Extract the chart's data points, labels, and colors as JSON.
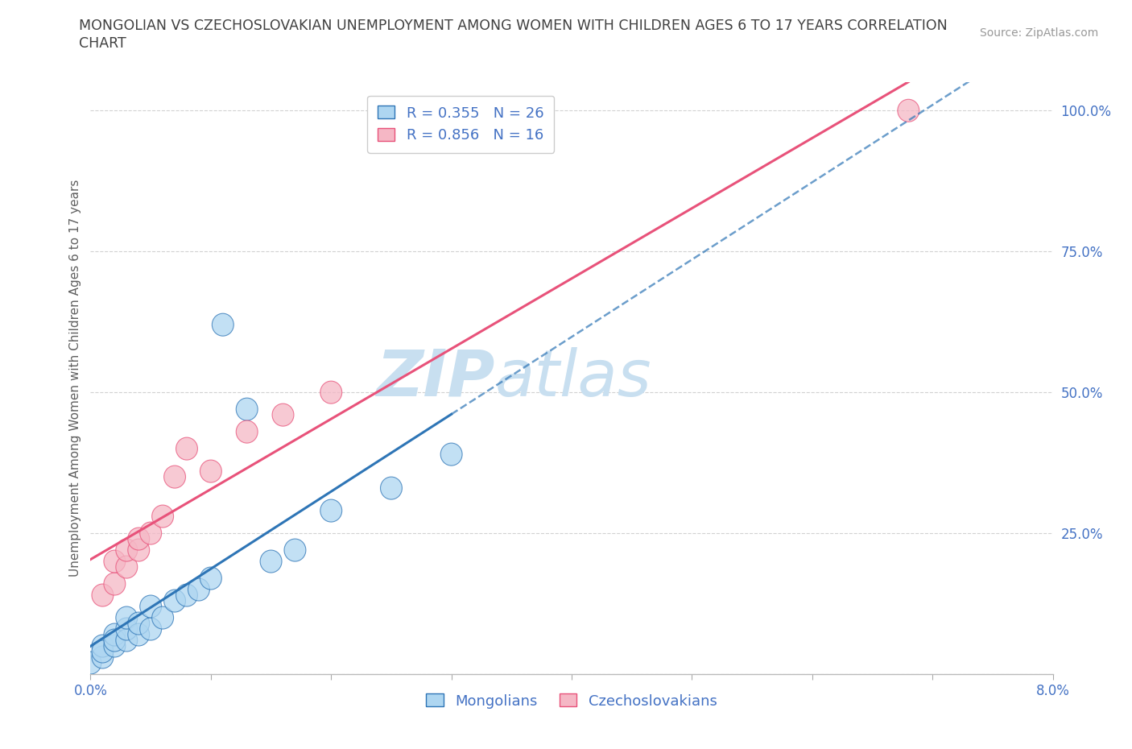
{
  "title_line1": "MONGOLIAN VS CZECHOSLOVAKIAN UNEMPLOYMENT AMONG WOMEN WITH CHILDREN AGES 6 TO 17 YEARS CORRELATION",
  "title_line2": "CHART",
  "source_text": "Source: ZipAtlas.com",
  "ylabel": "Unemployment Among Women with Children Ages 6 to 17 years",
  "xlim": [
    0.0,
    0.08
  ],
  "ylim": [
    0.0,
    1.05
  ],
  "xticks": [
    0.0,
    0.01,
    0.02,
    0.03,
    0.04,
    0.05,
    0.06,
    0.07,
    0.08
  ],
  "xticklabels": [
    "0.0%",
    "",
    "",
    "",
    "",
    "",
    "",
    "",
    "8.0%"
  ],
  "yticks": [
    0.0,
    0.25,
    0.5,
    0.75,
    1.0
  ],
  "yticklabels": [
    "",
    "25.0%",
    "50.0%",
    "75.0%",
    "100.0%"
  ],
  "mongolian_x": [
    0.0,
    0.001,
    0.001,
    0.001,
    0.002,
    0.002,
    0.002,
    0.003,
    0.003,
    0.003,
    0.004,
    0.004,
    0.005,
    0.005,
    0.006,
    0.007,
    0.008,
    0.009,
    0.01,
    0.011,
    0.013,
    0.015,
    0.017,
    0.02,
    0.025,
    0.03
  ],
  "mongolian_y": [
    0.02,
    0.03,
    0.05,
    0.04,
    0.05,
    0.07,
    0.06,
    0.06,
    0.08,
    0.1,
    0.07,
    0.09,
    0.08,
    0.12,
    0.1,
    0.13,
    0.14,
    0.15,
    0.17,
    0.62,
    0.47,
    0.2,
    0.22,
    0.29,
    0.33,
    0.39
  ],
  "czechoslovakian_x": [
    0.001,
    0.002,
    0.002,
    0.003,
    0.003,
    0.004,
    0.004,
    0.005,
    0.006,
    0.007,
    0.008,
    0.01,
    0.013,
    0.016,
    0.02,
    0.068
  ],
  "czechoslovakian_y": [
    0.14,
    0.16,
    0.2,
    0.19,
    0.22,
    0.22,
    0.24,
    0.25,
    0.28,
    0.35,
    0.4,
    0.36,
    0.43,
    0.46,
    0.5,
    1.0
  ],
  "mongolian_R": 0.355,
  "mongolian_N": 26,
  "czechoslovakian_R": 0.856,
  "czechoslovakian_N": 16,
  "mongolian_color": "#aed6f1",
  "czechoslovakian_color": "#f5b7c5",
  "mongolian_line_color": "#2e75b6",
  "czechoslovakian_line_color": "#e8527a",
  "mongolian_edge_color": "#2e75b6",
  "czechoslovakian_edge_color": "#e8527a",
  "watermark_zip": "ZIP",
  "watermark_atlas": "atlas",
  "watermark_color": "#c8dff0",
  "background_color": "#ffffff",
  "grid_color": "#cccccc",
  "title_color": "#404040",
  "axis_label_color": "#606060",
  "tick_label_color": "#4472c4",
  "right_tick_label_color": "#4472c4"
}
